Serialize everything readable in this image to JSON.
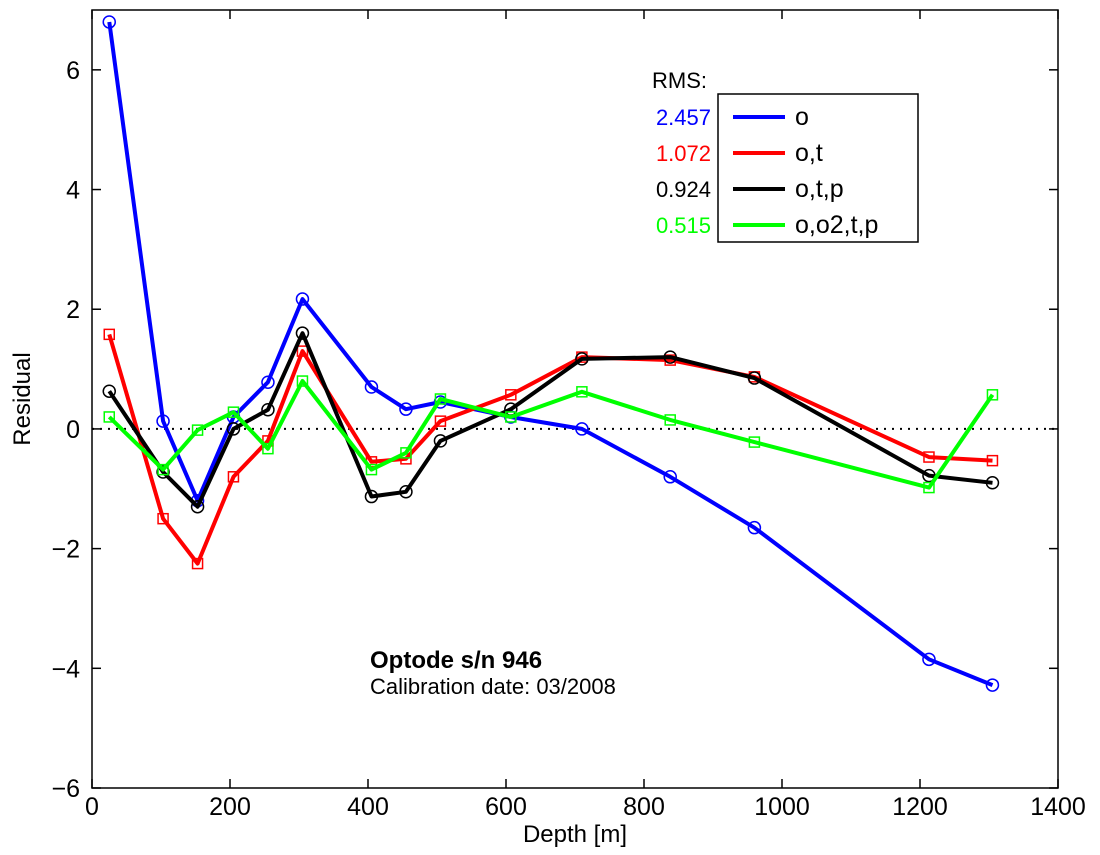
{
  "chart_data": {
    "type": "line",
    "xlabel": "Depth [m]",
    "ylabel": "Residual",
    "xlim": [
      0,
      1400
    ],
    "ylim": [
      -6,
      7
    ],
    "xticks": [
      0,
      200,
      400,
      600,
      800,
      1000,
      1200,
      1400
    ],
    "yticks": [
      -6,
      -4,
      -2,
      0,
      2,
      4,
      6
    ],
    "xtick_labels": [
      "0",
      "200",
      "400",
      "600",
      "800",
      "1000",
      "1200",
      "1400"
    ],
    "ytick_labels": [
      "−6",
      "−4",
      "−2",
      "0",
      "2",
      "4",
      "6"
    ],
    "grid": false,
    "zero_line": "dotted",
    "legend_position": "top-right",
    "rms_heading": "RMS:",
    "annotation": {
      "title": "Optode s/n 946",
      "subtitle": "Calibration date: 03/2008"
    },
    "series": [
      {
        "name": "o",
        "rms": "2.457",
        "color": "#0000ff",
        "marker": "circle",
        "x": [
          25,
          103,
          153,
          205,
          255,
          305,
          405,
          455,
          505,
          607,
          710,
          838,
          960,
          1213,
          1305
        ],
        "y": [
          6.8,
          0.13,
          -1.2,
          0.2,
          0.78,
          2.17,
          0.7,
          0.33,
          0.45,
          0.2,
          0.0,
          -0.8,
          -1.65,
          -3.85,
          -4.28
        ]
      },
      {
        "name": "o,t",
        "rms": "1.072",
        "color": "#ff0000",
        "marker": "square",
        "x": [
          25,
          103,
          153,
          205,
          255,
          305,
          405,
          455,
          505,
          607,
          710,
          838,
          960,
          1213,
          1305
        ],
        "y": [
          1.58,
          -1.5,
          -2.25,
          -0.8,
          -0.2,
          1.3,
          -0.55,
          -0.5,
          0.13,
          0.57,
          1.2,
          1.15,
          0.87,
          -0.47,
          -0.53
        ]
      },
      {
        "name": "o,t,p",
        "rms": "0.924",
        "color": "#000000",
        "marker": "circle",
        "x": [
          25,
          103,
          153,
          205,
          255,
          305,
          405,
          455,
          505,
          607,
          710,
          838,
          960,
          1213,
          1305
        ],
        "y": [
          0.63,
          -0.72,
          -1.3,
          0.0,
          0.32,
          1.6,
          -1.13,
          -1.05,
          -0.2,
          0.33,
          1.17,
          1.2,
          0.85,
          -0.78,
          -0.9
        ]
      },
      {
        "name": "o,o2,t,p",
        "rms": "0.515",
        "color": "#00ff00",
        "marker": "square",
        "x": [
          25,
          103,
          153,
          205,
          255,
          305,
          405,
          455,
          505,
          607,
          710,
          838,
          960,
          1213,
          1305
        ],
        "y": [
          0.2,
          -0.68,
          -0.02,
          0.28,
          -0.33,
          0.8,
          -0.68,
          -0.4,
          0.5,
          0.2,
          0.62,
          0.15,
          -0.22,
          -0.98,
          0.57
        ]
      }
    ]
  }
}
